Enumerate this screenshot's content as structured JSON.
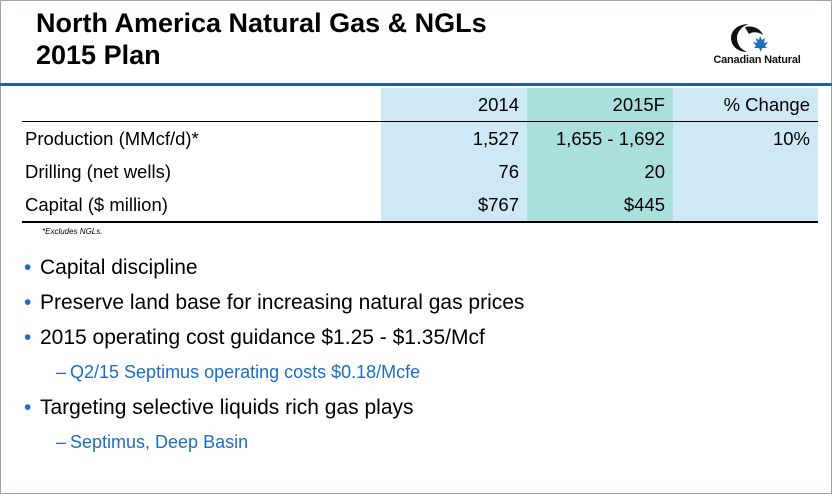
{
  "title": {
    "line1": "North America Natural Gas & NGLs",
    "line2": "2015 Plan"
  },
  "logo": {
    "icon": "canadian-natural-logo-icon",
    "text": "Canadian Natural"
  },
  "table": {
    "headers": [
      "",
      "2014",
      "2015F",
      "% Change"
    ],
    "rows": [
      [
        "Production (MMcf/d)*",
        "1,527",
        "1,655 - 1,692",
        "10%"
      ],
      [
        "Drilling (net wells)",
        "76",
        "20",
        ""
      ],
      [
        "Capital ($ million)",
        "$767",
        "$445",
        ""
      ]
    ]
  },
  "footnote": "*Excludes NGLs.",
  "bullets": [
    {
      "text": "Capital discipline"
    },
    {
      "text": "Preserve land base for increasing natural gas prices"
    },
    {
      "text": "2015 operating cost guidance $1.25 - $1.35/Mcf",
      "sub": [
        "Q2/15 Septimus operating costs $0.18/Mcfe"
      ]
    },
    {
      "text": "Targeting selective liquids rich gas plays",
      "sub": [
        "Septimus, Deep Basin"
      ]
    }
  ],
  "colors": {
    "accent_rule": "#1f5fa8",
    "col_2014": "#cfe8f6",
    "col_2015f": "#a9e0dc",
    "col_change": "#cfe8f6",
    "sub_bullet_text": "#1a6ec4"
  }
}
